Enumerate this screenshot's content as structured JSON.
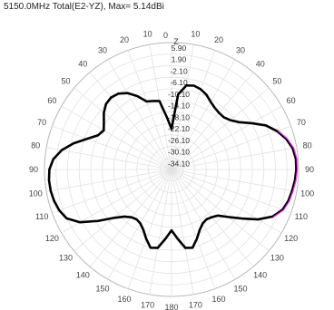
{
  "chart_data": {
    "type": "polar",
    "title": "5150.0MHz Total(E2-YZ), Max= 5.14dBi",
    "axis_label": "Z",
    "radial_ticks": [
      "5.90",
      "1.90",
      "-2.10",
      "-6.10",
      "-10.10",
      "-14.10",
      "-18.10",
      "-22.10",
      "-26.10",
      "-30.10",
      "-34.10"
    ],
    "radial_values": [
      5.9,
      1.9,
      -2.1,
      -6.1,
      -10.1,
      -14.1,
      -18.1,
      -22.1,
      -26.1,
      -30.1,
      -34.1
    ],
    "rlim": [
      -38.1,
      5.9
    ],
    "angle_ticks": [
      "0",
      "10",
      "20",
      "30",
      "40",
      "50",
      "60",
      "70",
      "80",
      "90",
      "100",
      "110",
      "120",
      "130",
      "140",
      "150",
      "160",
      "170",
      "180",
      "170",
      "160",
      "150",
      "140",
      "130",
      "120",
      "110",
      "100",
      "90",
      "80",
      "70",
      "60",
      "50",
      "40",
      "30",
      "20",
      "10"
    ],
    "grid": true,
    "series": [
      {
        "color": "#000000",
        "highlight_color": "#ff33ff",
        "angles_deg": [
          0,
          5,
          10,
          15,
          20,
          25,
          30,
          35,
          40,
          45,
          50,
          55,
          60,
          65,
          70,
          75,
          80,
          85,
          90,
          95,
          100,
          105,
          110,
          115,
          120,
          125,
          130,
          135,
          140,
          145,
          150,
          155,
          160,
          165,
          170,
          175,
          180,
          185,
          190,
          195,
          200,
          205,
          210,
          215,
          220,
          225,
          230,
          235,
          240,
          245,
          250,
          255,
          260,
          265,
          270,
          275,
          280,
          285,
          290,
          295,
          300,
          305,
          310,
          315,
          320,
          325,
          330,
          335,
          340,
          345,
          350,
          355
        ],
        "gain_dbi": [
          -24,
          -12,
          -8.5,
          -8,
          -8.5,
          -9.5,
          -11,
          -12,
          -12.5,
          -12.5,
          -11.5,
          -9.5,
          -6,
          -2,
          0.8,
          3,
          4.5,
          5.1,
          5.1,
          4.8,
          4.3,
          3.8,
          2.8,
          0.5,
          -3.5,
          -8.5,
          -12.5,
          -15.5,
          -16.5,
          -17,
          -16.5,
          -15,
          -12.5,
          -10,
          -10.5,
          -14,
          -17,
          -14,
          -10.5,
          -10,
          -12.5,
          -15,
          -16.5,
          -17,
          -16.5,
          -15,
          -12,
          -7,
          -1.5,
          2,
          3.3,
          4,
          4.4,
          4.5,
          4.2,
          3,
          0.5,
          -3,
          -7,
          -10,
          -11,
          -9.5,
          -7.5,
          -6,
          -5.5,
          -6,
          -7.5,
          -10,
          -13,
          -13.5,
          -14,
          -20
        ],
        "highlight_angles_deg": [
          70,
          115
        ]
      }
    ]
  }
}
